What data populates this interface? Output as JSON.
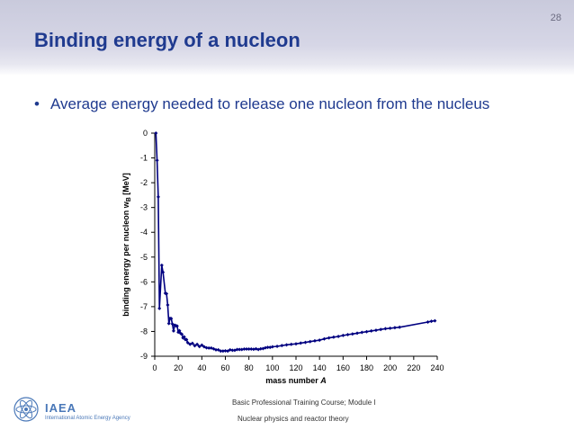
{
  "slide": {
    "page_number": "28",
    "title": "Binding energy of a nucleon",
    "bullet": "Average energy needed to release one nucleon from the nucleus"
  },
  "footer": {
    "course": "Basic Professional Training Course; Module I",
    "module": "Nuclear physics and reactor theory",
    "org_short": "IAEA",
    "org_full": "International Atomic Energy Agency"
  },
  "colors": {
    "title": "#1f3a8f",
    "series": "#000080",
    "brand": "#4a78b8"
  },
  "chart_data": {
    "type": "line",
    "title": "",
    "xlabel": "mass number A",
    "ylabel_main": "binding energy per nucleon w",
    "ylabel_sub": "B",
    "ylabel_unit": "[MeV]",
    "xlim": [
      0,
      240
    ],
    "ylim": [
      -9,
      0
    ],
    "xticks": [
      0,
      20,
      40,
      60,
      80,
      100,
      120,
      140,
      160,
      180,
      200,
      220,
      240
    ],
    "yticks": [
      0,
      -1,
      -2,
      -3,
      -4,
      -5,
      -6,
      -7,
      -8,
      -9
    ],
    "grid": false,
    "legend": "none",
    "series": [
      {
        "markers": "diamond",
        "points": [
          [
            1,
            0
          ],
          [
            2,
            -1.1
          ],
          [
            3,
            -2.57
          ],
          [
            4,
            -7.07
          ],
          [
            6,
            -5.33
          ],
          [
            7,
            -5.61
          ],
          [
            9,
            -6.46
          ],
          [
            10,
            -6.48
          ],
          [
            11,
            -6.93
          ],
          [
            12,
            -7.68
          ],
          [
            13,
            -7.47
          ],
          [
            14,
            -7.48
          ],
          [
            15,
            -7.7
          ],
          [
            16,
            -7.98
          ],
          [
            17,
            -7.75
          ],
          [
            18,
            -7.77
          ],
          [
            19,
            -7.78
          ],
          [
            20,
            -8.03
          ],
          [
            21,
            -7.97
          ],
          [
            22,
            -8.08
          ],
          [
            23,
            -8.11
          ],
          [
            24,
            -8.26
          ],
          [
            25,
            -8.22
          ],
          [
            26,
            -8.33
          ],
          [
            27,
            -8.33
          ],
          [
            28,
            -8.45
          ],
          [
            30,
            -8.52
          ],
          [
            32,
            -8.48
          ],
          [
            34,
            -8.58
          ],
          [
            36,
            -8.52
          ],
          [
            38,
            -8.61
          ],
          [
            40,
            -8.55
          ],
          [
            42,
            -8.62
          ],
          [
            44,
            -8.66
          ],
          [
            46,
            -8.67
          ],
          [
            48,
            -8.67
          ],
          [
            50,
            -8.7
          ],
          [
            52,
            -8.74
          ],
          [
            54,
            -8.74
          ],
          [
            56,
            -8.79
          ],
          [
            58,
            -8.79
          ],
          [
            60,
            -8.78
          ],
          [
            62,
            -8.79
          ],
          [
            64,
            -8.74
          ],
          [
            66,
            -8.76
          ],
          [
            68,
            -8.76
          ],
          [
            70,
            -8.73
          ],
          [
            72,
            -8.73
          ],
          [
            74,
            -8.73
          ],
          [
            76,
            -8.71
          ],
          [
            78,
            -8.71
          ],
          [
            80,
            -8.71
          ],
          [
            82,
            -8.71
          ],
          [
            84,
            -8.72
          ],
          [
            86,
            -8.7
          ],
          [
            88,
            -8.73
          ],
          [
            90,
            -8.7
          ],
          [
            92,
            -8.69
          ],
          [
            94,
            -8.66
          ],
          [
            96,
            -8.64
          ],
          [
            98,
            -8.64
          ],
          [
            100,
            -8.62
          ],
          [
            104,
            -8.6
          ],
          [
            108,
            -8.57
          ],
          [
            112,
            -8.54
          ],
          [
            116,
            -8.52
          ],
          [
            120,
            -8.5
          ],
          [
            124,
            -8.47
          ],
          [
            128,
            -8.44
          ],
          [
            132,
            -8.41
          ],
          [
            136,
            -8.38
          ],
          [
            140,
            -8.35
          ],
          [
            144,
            -8.3
          ],
          [
            148,
            -8.26
          ],
          [
            152,
            -8.23
          ],
          [
            156,
            -8.2
          ],
          [
            160,
            -8.16
          ],
          [
            164,
            -8.13
          ],
          [
            168,
            -8.1
          ],
          [
            172,
            -8.07
          ],
          [
            176,
            -8.04
          ],
          [
            180,
            -8.01
          ],
          [
            184,
            -7.98
          ],
          [
            188,
            -7.95
          ],
          [
            192,
            -7.92
          ],
          [
            196,
            -7.89
          ],
          [
            200,
            -7.87
          ],
          [
            204,
            -7.85
          ],
          [
            208,
            -7.83
          ],
          [
            232,
            -7.62
          ],
          [
            235,
            -7.59
          ],
          [
            238,
            -7.57
          ]
        ]
      }
    ]
  }
}
